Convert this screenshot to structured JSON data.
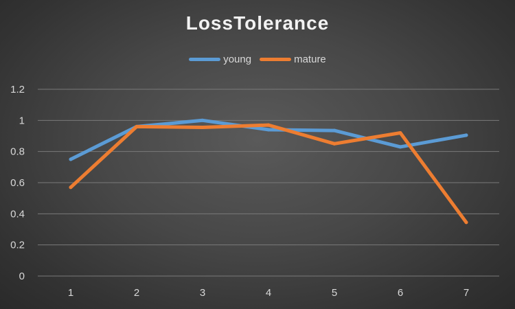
{
  "chart_data": {
    "type": "line",
    "title": "LossTolerance",
    "xlabel": "",
    "ylabel": "",
    "categories": [
      "1",
      "2",
      "3",
      "4",
      "5",
      "6",
      "7"
    ],
    "ylim": [
      0,
      1.2
    ],
    "yticks": [
      "0",
      "0.2",
      "0.4",
      "0.6",
      "0.8",
      "1",
      "1.2"
    ],
    "grid": true,
    "legend_position": "top",
    "series": [
      {
        "name": "young",
        "color": "#5b9bd5",
        "values": [
          0.75,
          0.96,
          1.0,
          0.94,
          0.935,
          0.83,
          0.905
        ]
      },
      {
        "name": "mature",
        "color": "#ed7d31",
        "values": [
          0.57,
          0.96,
          0.955,
          0.97,
          0.85,
          0.92,
          0.345
        ]
      }
    ]
  }
}
